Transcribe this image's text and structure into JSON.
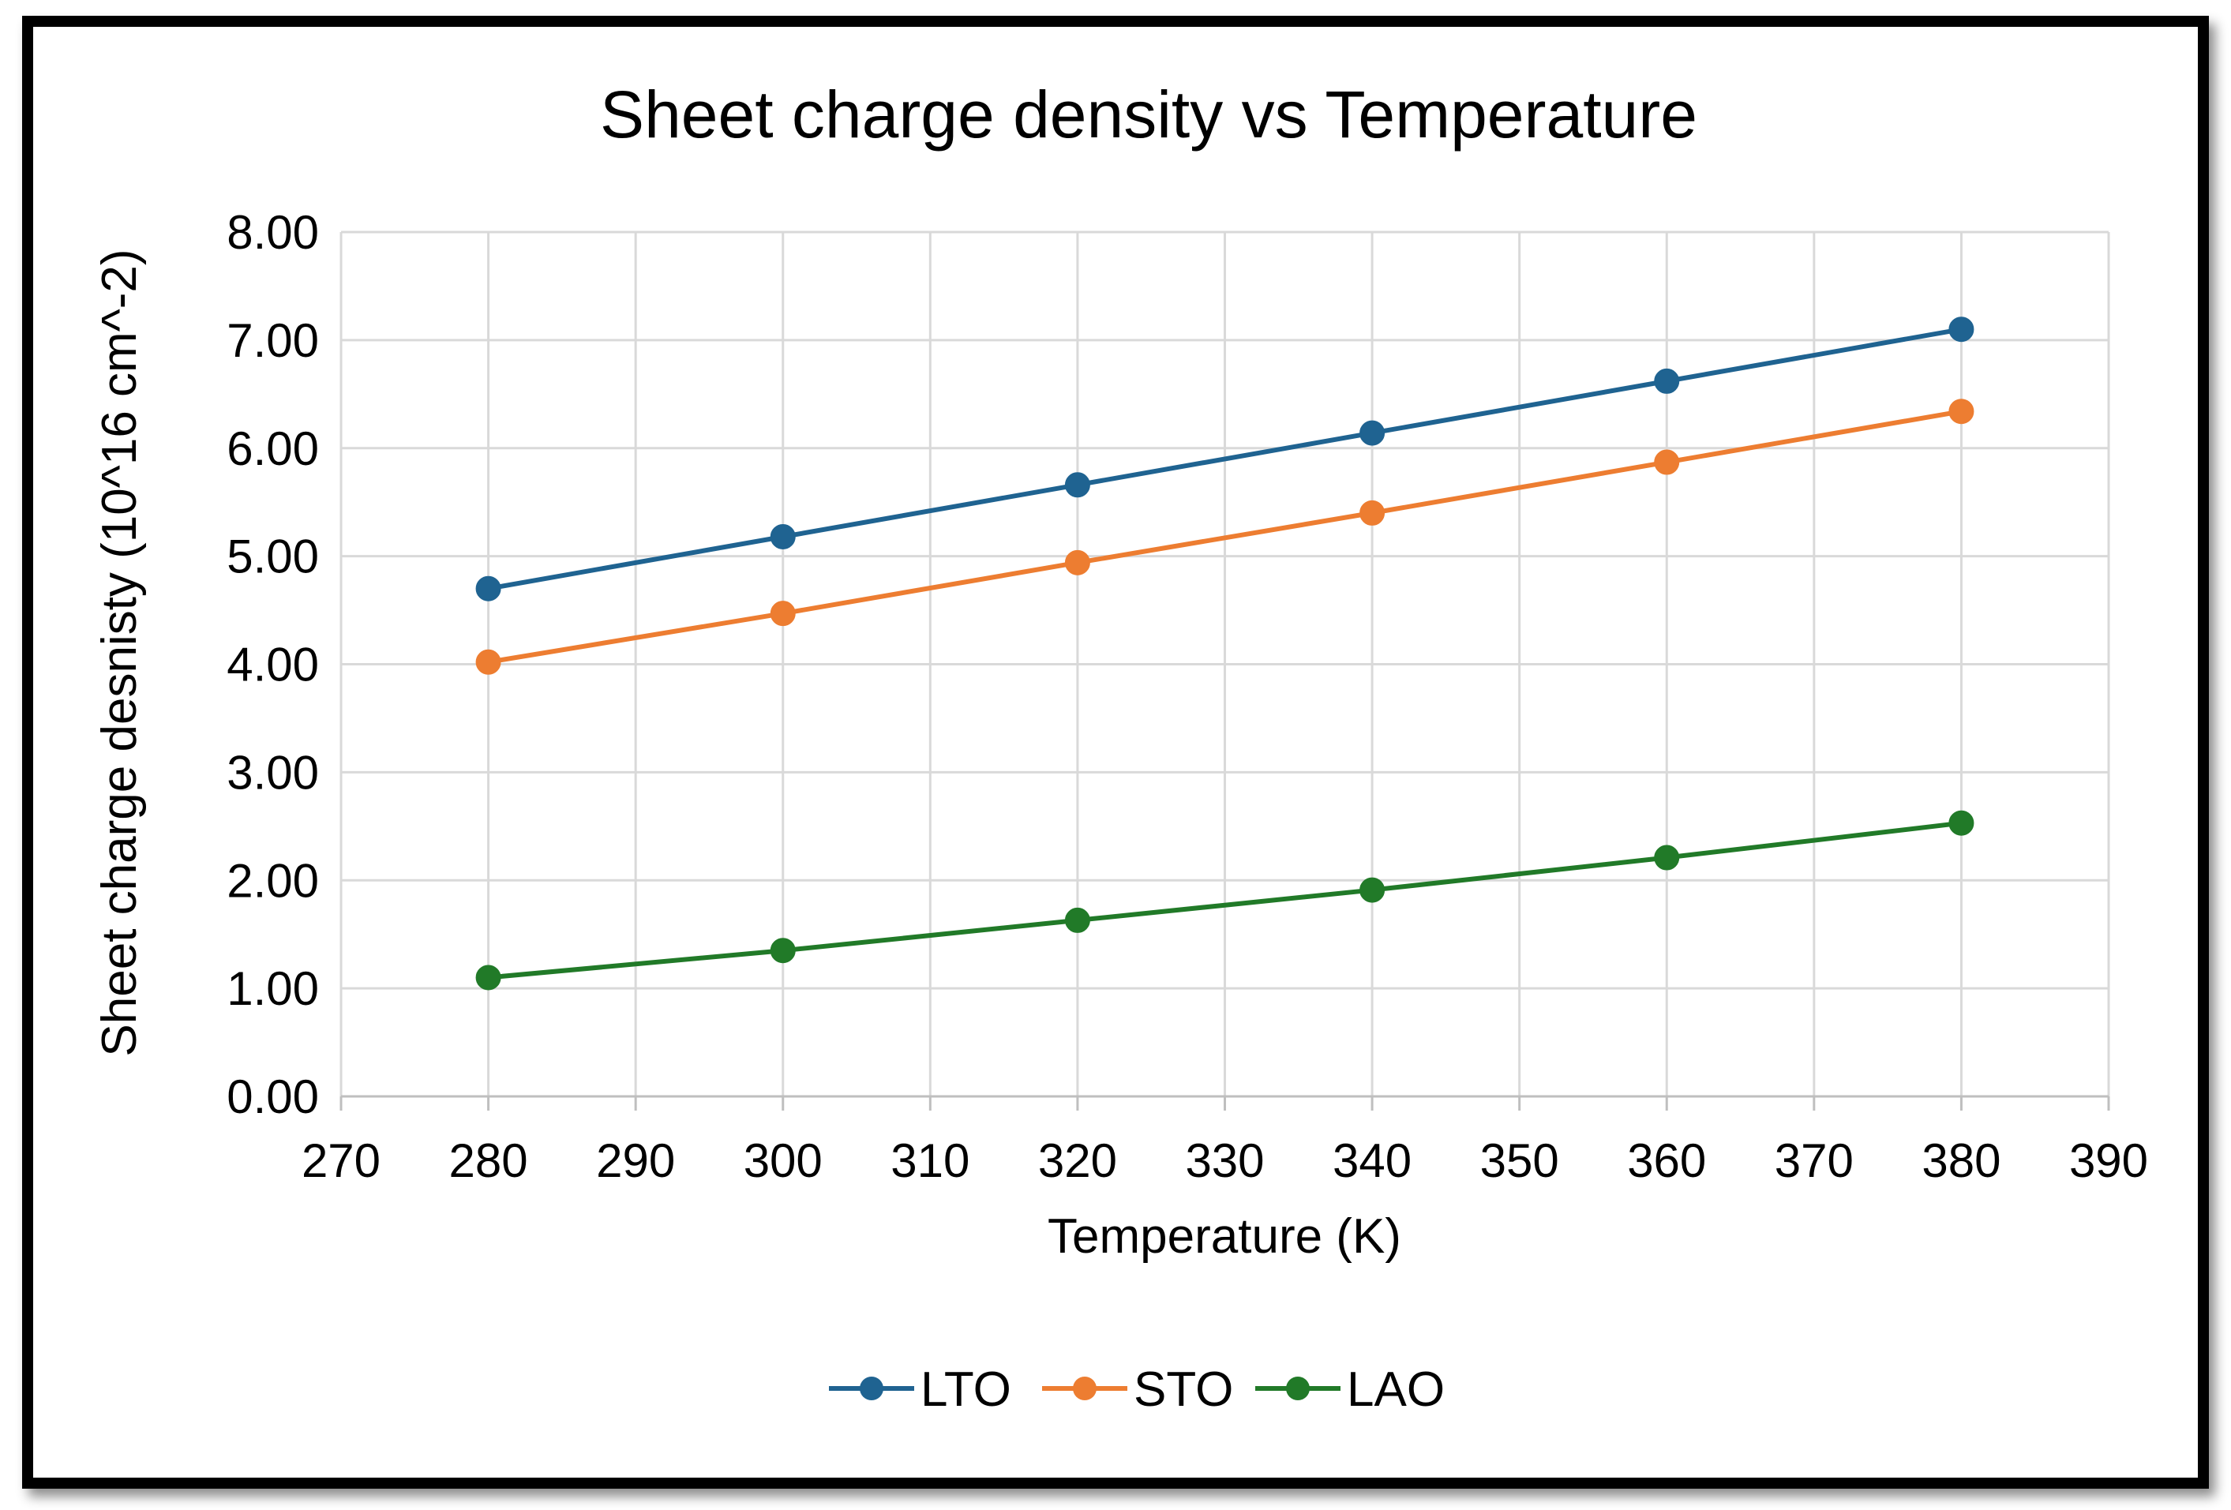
{
  "chart_data": {
    "type": "line",
    "title": "Sheet charge density vs Temperature",
    "xlabel": "Temperature (K)",
    "ylabel": "Sheet charge desnisty (10^16 cm^-2)",
    "xlim": [
      270,
      390
    ],
    "ylim": [
      0,
      8
    ],
    "x_ticks": [
      "270",
      "280",
      "290",
      "300",
      "310",
      "320",
      "330",
      "340",
      "350",
      "360",
      "370",
      "380",
      "390"
    ],
    "y_ticks": [
      "0.00",
      "1.00",
      "2.00",
      "3.00",
      "4.00",
      "5.00",
      "6.00",
      "7.00",
      "8.00"
    ],
    "grid": true,
    "legend_position": "bottom",
    "x": [
      280,
      300,
      320,
      340,
      360,
      380
    ],
    "series": [
      {
        "name": "LTO",
        "color": "#1F6391",
        "values": [
          4.7,
          5.18,
          5.66,
          6.14,
          6.62,
          7.1
        ]
      },
      {
        "name": "STO",
        "color": "#ED7D31",
        "values": [
          4.02,
          4.47,
          4.94,
          5.4,
          5.87,
          6.34
        ]
      },
      {
        "name": "LAO",
        "color": "#217A28",
        "values": [
          1.1,
          1.35,
          1.63,
          1.91,
          2.21,
          2.53
        ]
      }
    ]
  }
}
